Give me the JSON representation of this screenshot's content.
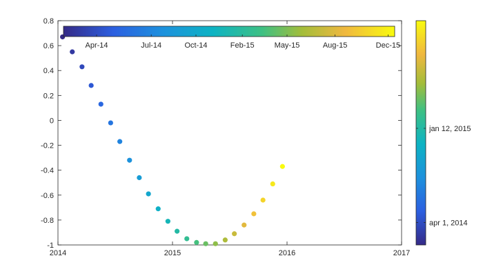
{
  "chart_data": {
    "type": "scatter",
    "title": "",
    "xlabel": "",
    "ylabel": "",
    "xlim": [
      2014,
      2017
    ],
    "ylim": [
      -1,
      0.8
    ],
    "xticks": [
      "2014",
      "2015",
      "2016",
      "2017"
    ],
    "yticks": [
      "-1",
      "-0.8",
      "-0.6",
      "-0.4",
      "-0.2",
      "0",
      "0.2",
      "0.4",
      "0.6",
      "0.8"
    ],
    "grid": false,
    "colormap": "parula",
    "horizontal_colorbar": {
      "placement": "top inside axes",
      "tick_labels": [
        "Apr-14",
        "Jul-14",
        "Oct-14",
        "Feb-15",
        "May-15",
        "Aug-15",
        "Dec-15"
      ]
    },
    "vertical_colorbar": {
      "placement": "right of axes",
      "tick_labels": [
        "apr 1, 2014",
        "jan 12, 2015"
      ]
    },
    "series": [
      {
        "x": [
          2014.04,
          2014.125,
          2014.21,
          2014.29,
          2014.375,
          2014.46,
          2014.54,
          2014.625,
          2014.71,
          2014.79,
          2014.875,
          2014.96,
          2015.04,
          2015.125,
          2015.21,
          2015.29,
          2015.375,
          2015.46,
          2015.54,
          2015.625,
          2015.71,
          2015.79,
          2015.875,
          2015.96
        ],
        "y": [
          0.67,
          0.55,
          0.43,
          0.28,
          0.13,
          -0.02,
          -0.17,
          -0.32,
          -0.46,
          -0.59,
          -0.71,
          -0.81,
          -0.89,
          -0.95,
          -0.98,
          -0.99,
          -0.99,
          -0.96,
          -0.91,
          -0.84,
          -0.75,
          -0.64,
          -0.51,
          -0.37
        ]
      }
    ]
  }
}
